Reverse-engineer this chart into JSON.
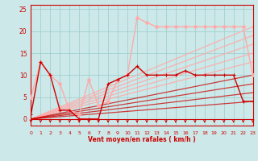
{
  "bg_color": "#cce8e8",
  "grid_color": "#99cccc",
  "dark_red": "#cc0000",
  "light_pink": "#ffaaaa",
  "xlabel": "Vent moyen/en rafales ( km/h )",
  "xlim": [
    0,
    23
  ],
  "ylim": [
    -1.5,
    26
  ],
  "yticks": [
    0,
    5,
    10,
    15,
    20,
    25
  ],
  "xticks": [
    0,
    1,
    2,
    3,
    4,
    5,
    6,
    7,
    8,
    9,
    10,
    11,
    12,
    13,
    14,
    15,
    16,
    17,
    18,
    19,
    20,
    21,
    22,
    23
  ],
  "x": [
    0,
    1,
    2,
    3,
    4,
    5,
    6,
    7,
    8,
    9,
    10,
    11,
    12,
    13,
    14,
    15,
    16,
    17,
    18,
    19,
    20,
    21,
    22,
    23
  ],
  "rafales_y": [
    5,
    13,
    10,
    8,
    2,
    1,
    9,
    3,
    4,
    9,
    10,
    23,
    22,
    21,
    21,
    21,
    21,
    21,
    21,
    21,
    21,
    21,
    21,
    10
  ],
  "moyen_y": [
    1,
    13,
    10,
    2,
    2,
    0,
    0,
    0,
    8,
    9,
    10,
    12,
    10,
    10,
    10,
    10,
    11,
    10,
    10,
    10,
    10,
    10,
    4,
    4
  ],
  "light_linear_lines": [
    [
      0,
      23,
      0,
      21
    ],
    [
      0,
      23,
      0,
      19
    ],
    [
      0,
      23,
      0,
      17
    ],
    [
      0,
      23,
      0,
      15
    ],
    [
      0,
      23,
      0,
      13
    ]
  ],
  "dark_linear_lines": [
    [
      0,
      23,
      0,
      10
    ],
    [
      0,
      23,
      0,
      8
    ],
    [
      0,
      23,
      0,
      6
    ],
    [
      0,
      23,
      0,
      4
    ]
  ]
}
